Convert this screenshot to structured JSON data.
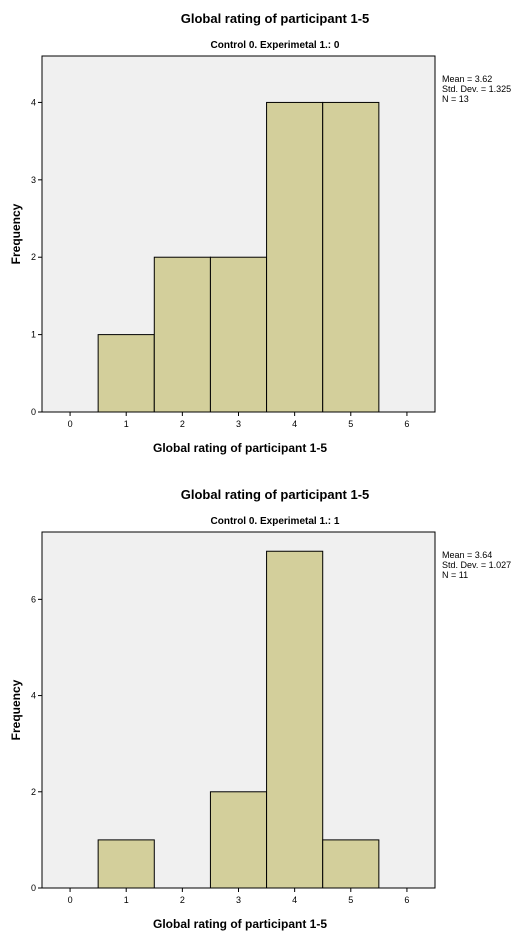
{
  "chart_data": [
    {
      "type": "bar",
      "title": "Global rating of participant 1-5",
      "subtitle": "Control 0. Experimetal 1.: 0",
      "xlabel": "Global rating of participant 1-5",
      "ylabel": "Frequency",
      "xlim": [
        -0.5,
        6.5
      ],
      "ylim": [
        0,
        4.6
      ],
      "xticks": [
        0,
        1,
        2,
        3,
        4,
        5,
        6
      ],
      "yticks": [
        0,
        1,
        2,
        3,
        4
      ],
      "categories": [
        1,
        2,
        3,
        4,
        5
      ],
      "values": [
        1,
        2,
        2,
        4,
        4
      ],
      "bar_color": "#d3cf9b",
      "plot_bg": "#f0f0f0",
      "grid": false,
      "stats": {
        "mean": "Mean = 3.62",
        "sd": "Std. Dev. = 1.325",
        "n": "N = 13"
      }
    },
    {
      "type": "bar",
      "title": "Global rating of participant 1-5",
      "subtitle": "Control 0. Experimetal 1.: 1",
      "xlabel": "Global rating of participant 1-5",
      "ylabel": "Frequency",
      "xlim": [
        -0.5,
        6.5
      ],
      "ylim": [
        0,
        7.4
      ],
      "xticks": [
        0,
        1,
        2,
        3,
        4,
        5,
        6
      ],
      "yticks": [
        0,
        2,
        4,
        6
      ],
      "categories": [
        1,
        2,
        3,
        4,
        5
      ],
      "values": [
        1,
        0,
        2,
        7,
        1
      ],
      "bar_color": "#d3cf9b",
      "plot_bg": "#f0f0f0",
      "grid": false,
      "stats": {
        "mean": "Mean = 3.64",
        "sd": "Std. Dev. = 1.027",
        "n": "N = 11"
      }
    }
  ]
}
